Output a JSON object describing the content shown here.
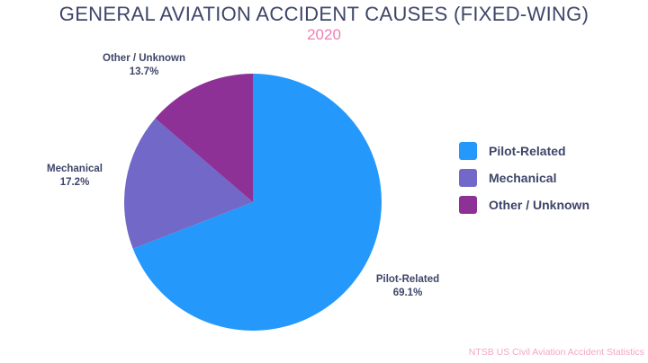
{
  "title": "GENERAL AVIATION ACCIDENT CAUSES (FIXED-WING)",
  "subtitle": "2020",
  "source": "NTSB US Civil Aviation Accident Statistics",
  "colors": {
    "background": "#FFFFFF",
    "title_text": "#3E4569",
    "subtitle_text": "#F07EB6",
    "label_text": "#3E4569",
    "source_text": "#F2A6C8",
    "pilot_related": "#2598FB",
    "mechanical": "#7168C8",
    "other_unknown": "#8D3196"
  },
  "chart_data": {
    "type": "pie",
    "title": "GENERAL AVIATION ACCIDENT CAUSES (FIXED-WING)",
    "subtitle": "2020",
    "categories": [
      "Pilot-Related",
      "Mechanical",
      "Other / Unknown"
    ],
    "values": [
      69.1,
      17.2,
      13.7
    ],
    "unit": "%",
    "start_angle_deg": 0,
    "direction": "clockwise",
    "legend_position": "right",
    "labels_outside": true,
    "slices": [
      {
        "id": "pilot-related",
        "label": "Pilot-Related",
        "value": 69.1,
        "pct_label": "69.1%",
        "color": "#2598FB"
      },
      {
        "id": "mechanical",
        "label": "Mechanical",
        "value": 17.2,
        "pct_label": "17.2%",
        "color": "#7168C8"
      },
      {
        "id": "other-unknown",
        "label": "Other / Unknown",
        "value": 13.7,
        "pct_label": "13.7%",
        "color": "#8D3196"
      }
    ],
    "source": "NTSB US Civil Aviation Accident Statistics"
  }
}
